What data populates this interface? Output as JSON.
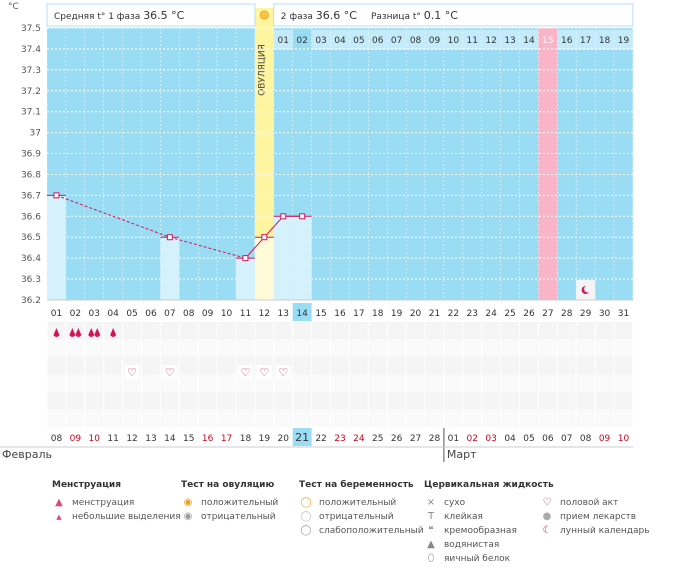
{
  "chart_data": {
    "type": "line",
    "unit": "°C",
    "ylim": [
      36.2,
      37.5
    ],
    "y_ticks": [
      "37.5",
      "37.4",
      "37.3",
      "37.2",
      "37.1",
      "37",
      "36.9",
      "36.8",
      "36.7",
      "36.6",
      "36.5",
      "36.4",
      "36.3",
      "36.2"
    ],
    "phase1_label": "Средняя t° 1 фаза",
    "phase1_avg": "36.5 °C",
    "phase2_label": "2 фаза",
    "phase2_avg": "36.6 °C",
    "diff_label": "Разница t°",
    "diff_value": "0.1 °C",
    "ovulation_label": "ОВУЛЯЦИЯ",
    "ovulation_day_index": 11,
    "cycle_days": [
      "01",
      "02",
      "03",
      "04",
      "05",
      "06",
      "07",
      "08",
      "09",
      "10",
      "11",
      "12",
      "13",
      "14",
      "15",
      "16",
      "17",
      "18",
      "19",
      "20",
      "21",
      "22",
      "23",
      "24",
      "25",
      "26",
      "27",
      "28",
      "29",
      "30",
      "31"
    ],
    "phase2_days": [
      "01",
      "02",
      "03",
      "04",
      "05",
      "06",
      "07",
      "08",
      "09",
      "10",
      "11",
      "12",
      "13",
      "14",
      "15",
      "16",
      "17",
      "18",
      "19"
    ],
    "highlighted_cycle_day": "14",
    "pink_column_index": 26,
    "moon_column_index": 28,
    "temperature_points": [
      {
        "day": 1,
        "temp": 36.7
      },
      {
        "day": 7,
        "temp": 36.5
      },
      {
        "day": 11,
        "temp": 36.4
      },
      {
        "day": 12,
        "temp": 36.5
      },
      {
        "day": 13,
        "temp": 36.6
      },
      {
        "day": 14,
        "temp": 36.6
      }
    ],
    "dates": [
      {
        "d": "08",
        "c": "#333"
      },
      {
        "d": "09",
        "c": "#d0021b"
      },
      {
        "d": "10",
        "c": "#d0021b"
      },
      {
        "d": "11",
        "c": "#333"
      },
      {
        "d": "12",
        "c": "#333"
      },
      {
        "d": "13",
        "c": "#333"
      },
      {
        "d": "14",
        "c": "#333"
      },
      {
        "d": "15",
        "c": "#333"
      },
      {
        "d": "16",
        "c": "#d0021b"
      },
      {
        "d": "17",
        "c": "#d0021b"
      },
      {
        "d": "18",
        "c": "#333"
      },
      {
        "d": "19",
        "c": "#333"
      },
      {
        "d": "20",
        "c": "#333"
      },
      {
        "d": "21",
        "c": "#333"
      },
      {
        "d": "22",
        "c": "#333"
      },
      {
        "d": "23",
        "c": "#d0021b"
      },
      {
        "d": "24",
        "c": "#d0021b"
      },
      {
        "d": "25",
        "c": "#333"
      },
      {
        "d": "26",
        "c": "#333"
      },
      {
        "d": "27",
        "c": "#333"
      },
      {
        "d": "28",
        "c": "#333"
      },
      {
        "d": "01",
        "c": "#333"
      },
      {
        "d": "02",
        "c": "#d0021b"
      },
      {
        "d": "03",
        "c": "#d0021b"
      },
      {
        "d": "04",
        "c": "#333"
      },
      {
        "d": "05",
        "c": "#333"
      },
      {
        "d": "06",
        "c": "#333"
      },
      {
        "d": "07",
        "c": "#333"
      },
      {
        "d": "08",
        "c": "#333"
      },
      {
        "d": "09",
        "c": "#d0021b"
      },
      {
        "d": "10",
        "c": "#d0021b"
      }
    ],
    "highlighted_date": "21",
    "month_left": "Февраль",
    "month_right": "Март",
    "menstruation_marks": [
      {
        "day": 1,
        "count": 1
      },
      {
        "day": 2,
        "count": 2
      },
      {
        "day": 3,
        "count": 2
      },
      {
        "day": 4,
        "count": 1
      }
    ],
    "heart_days": [
      5,
      7,
      11,
      12,
      13
    ]
  },
  "legend": {
    "menstruation": {
      "title": "Менструация",
      "items": [
        "менструация",
        "небольшие выделения"
      ]
    },
    "ovulation_test": {
      "title": "Тест на овуляцию",
      "items": [
        "положительный",
        "отрицательный"
      ]
    },
    "pregnancy_test": {
      "title": "Тест на беременность",
      "items": [
        "положительный",
        "отрицательный",
        "слабоположительный"
      ]
    },
    "cervical_fluid": {
      "title": "Цервикальная жидкость",
      "items": [
        "сухо",
        "клейкая",
        "кремообразная",
        "водянистая",
        "яичный белок"
      ]
    },
    "other": {
      "items": [
        "половой акт",
        "прием лекарств",
        "лунный календарь"
      ]
    }
  },
  "colors": {
    "sky": "#9adcf4",
    "ovulation": "#fff4a0",
    "pink": "#f9b4c8",
    "line": "#d4145a",
    "today": "#9adcf4"
  }
}
